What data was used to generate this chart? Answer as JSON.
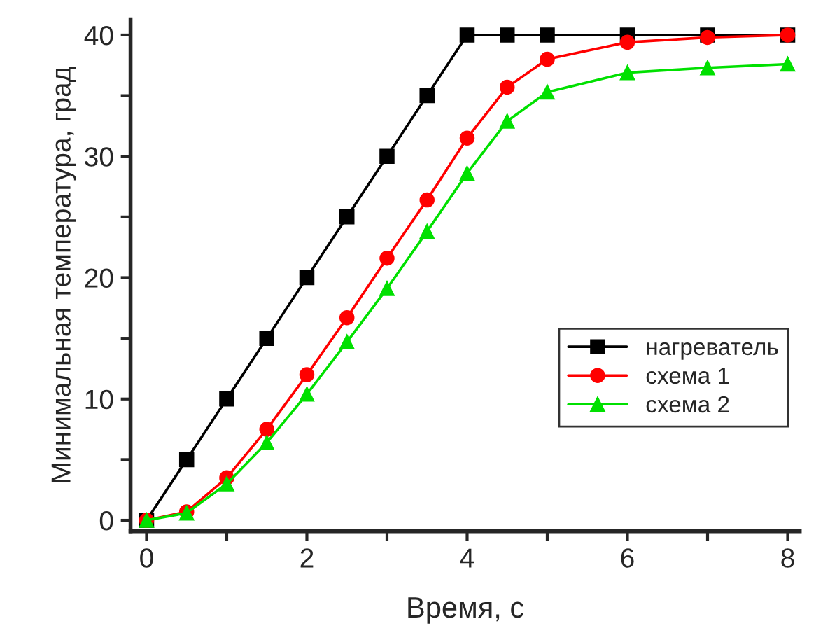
{
  "chart_data": {
    "type": "line",
    "xlabel": "Время, с",
    "ylabel": "Минимальная температура, град",
    "xlim": [
      -0.2,
      8.15
    ],
    "ylim": [
      -0.9,
      41.3
    ],
    "xticks": [
      0,
      {
        "value": 1,
        "label": null
      },
      2,
      {
        "value": 3,
        "label": null
      },
      4,
      {
        "value": 5,
        "label": null
      },
      6,
      {
        "value": 7,
        "label": null
      },
      8
    ],
    "yticks": [
      0,
      {
        "value": 5,
        "label": null
      },
      10,
      {
        "value": 15,
        "label": null
      },
      20,
      {
        "value": 25,
        "label": null
      },
      30,
      {
        "value": 35,
        "label": null
      },
      40
    ],
    "grid": false,
    "legend": "right",
    "line_style": "solid",
    "series": [
      {
        "name": "нагреватель",
        "color": "#000000",
        "marker": "square",
        "x": [
          0,
          0.5,
          1,
          1.5,
          2,
          2.5,
          3,
          3.5,
          4,
          4.5,
          5,
          6,
          7,
          8
        ],
        "values": [
          0,
          5,
          10,
          15,
          20,
          25,
          30,
          35,
          40,
          40,
          40,
          40,
          40,
          40
        ]
      },
      {
        "name": "схема 1",
        "color": "#ff0000",
        "marker": "circle",
        "x": [
          0,
          0.5,
          1,
          1.5,
          2,
          2.5,
          3,
          3.5,
          4,
          4.5,
          5,
          6,
          7,
          8
        ],
        "values": [
          0,
          0.7,
          3.5,
          7.5,
          12,
          16.7,
          21.6,
          26.4,
          31.5,
          35.7,
          38,
          39.4,
          39.8,
          40
        ]
      },
      {
        "name": "схема 2",
        "color": "#00e000",
        "marker": "triangle",
        "x": [
          0,
          0.5,
          1,
          1.5,
          2,
          2.5,
          3,
          3.5,
          4,
          4.5,
          5,
          6,
          7,
          8
        ],
        "values": [
          0,
          0.6,
          3,
          6.4,
          10.4,
          14.7,
          19.1,
          23.8,
          28.6,
          32.9,
          35.3,
          36.9,
          37.3,
          37.6
        ]
      }
    ]
  }
}
